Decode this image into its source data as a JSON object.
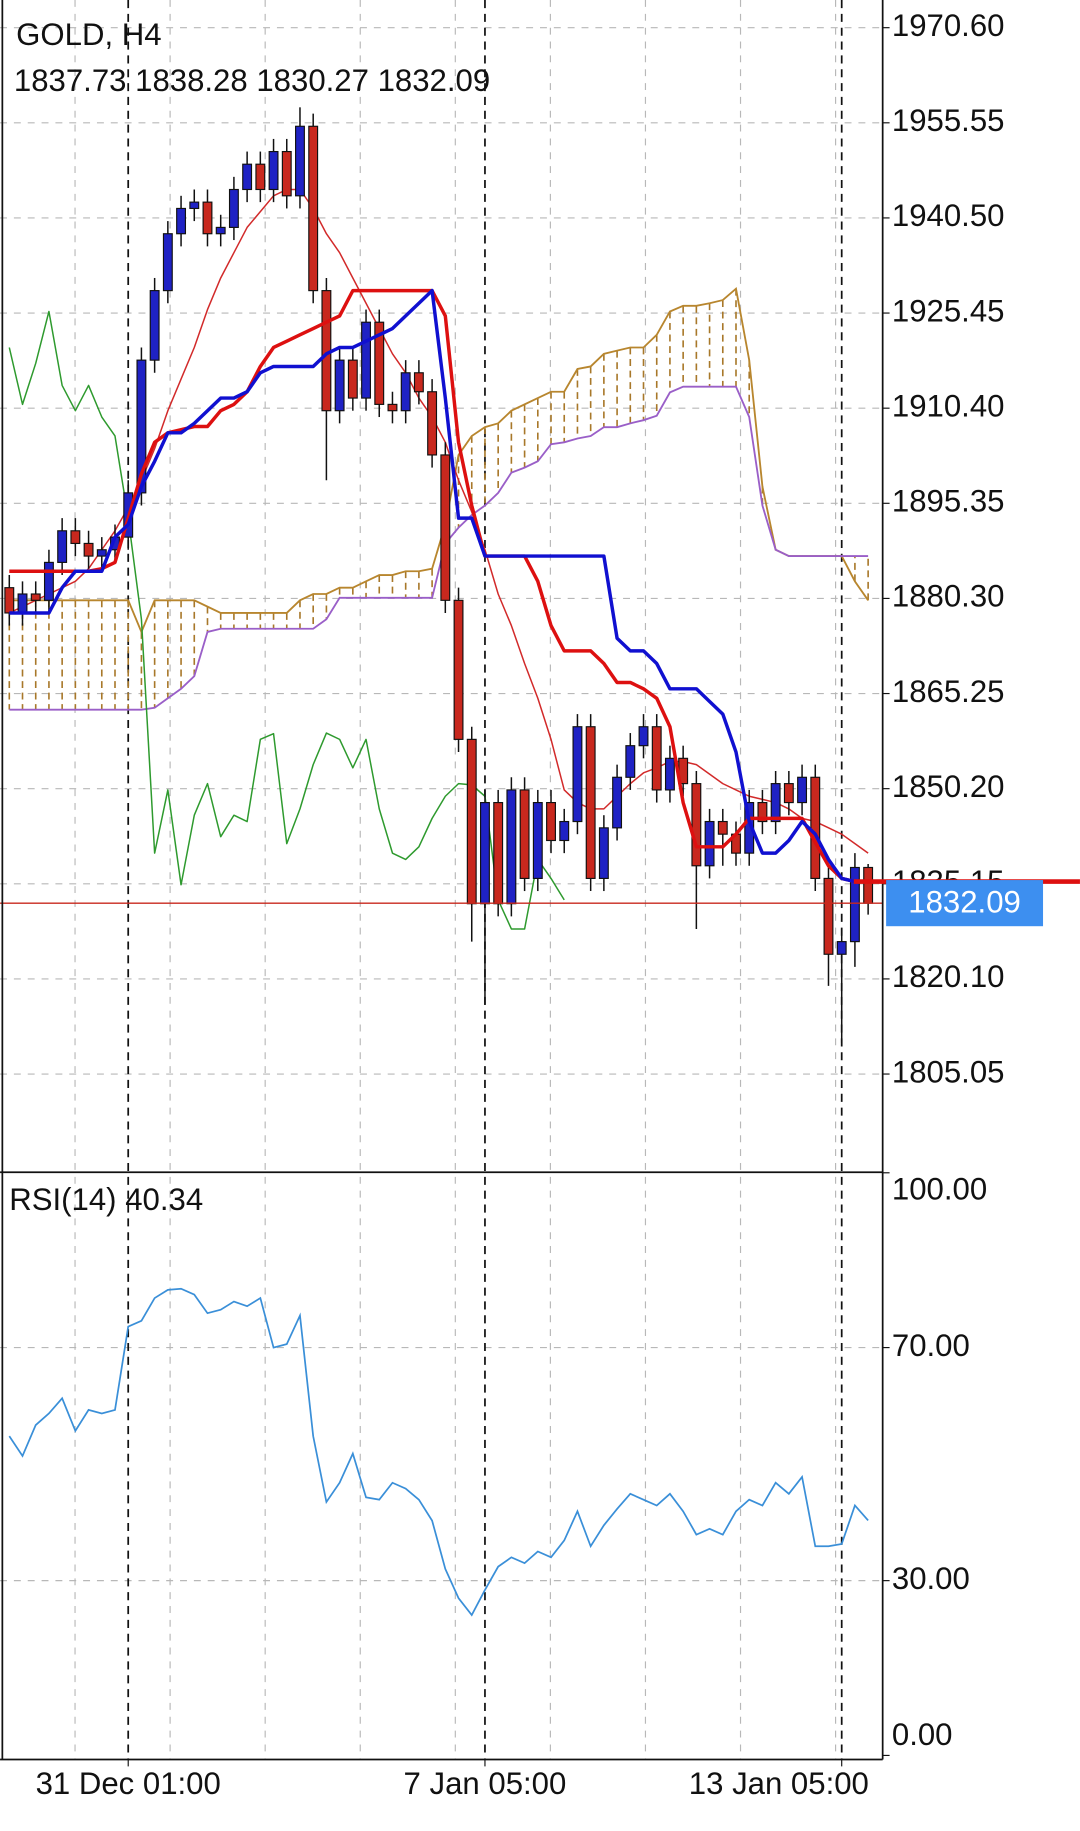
{
  "chart_data": [
    {
      "type": "candlestick",
      "title": "GOLD, H4",
      "open": [
        1882,
        1878,
        1881,
        1880,
        1886,
        1891,
        1889,
        1887,
        1888,
        1890,
        1897,
        1918,
        1929,
        1938,
        1942,
        1943,
        1938,
        1939,
        1945,
        1949,
        1945,
        1951,
        1944,
        1955,
        1929,
        1910,
        1918,
        1912,
        1924,
        1911,
        1910,
        1916,
        1913,
        1903,
        1880,
        1858,
        1832,
        1848,
        1832,
        1850,
        1836,
        1848,
        1842,
        1845,
        1860,
        1836,
        1844,
        1852,
        1857,
        1860,
        1850,
        1855,
        1851,
        1838,
        1845,
        1843,
        1840,
        1848,
        1845,
        1851,
        1848,
        1852,
        1836,
        1824,
        1826,
        1837.73
      ],
      "high": [
        1884,
        1883,
        1883,
        1888,
        1893,
        1893,
        1891,
        1890,
        1892,
        1899,
        1920,
        1931,
        1940,
        1944,
        1945,
        1945,
        1941,
        1947,
        1951,
        1951,
        1953,
        1953,
        1958,
        1957,
        1931,
        1920,
        1920,
        1926,
        1926,
        1913,
        1918,
        1918,
        1915,
        1905,
        1882,
        1860,
        1850,
        1850,
        1852,
        1852,
        1850,
        1850,
        1847,
        1862,
        1862,
        1846,
        1854,
        1859,
        1862,
        1862,
        1857,
        1857,
        1853,
        1847,
        1847,
        1845,
        1850,
        1850,
        1853,
        1853,
        1854,
        1854,
        1838,
        1828,
        1840,
        1838.28
      ],
      "low": [
        1876,
        1876,
        1878,
        1878,
        1884,
        1887,
        1885,
        1885,
        1886,
        1888,
        1895,
        1916,
        1927,
        1936,
        1940,
        1936,
        1936,
        1937,
        1943,
        1943,
        1943,
        1942,
        1942,
        1927,
        1899,
        1908,
        1910,
        1910,
        1909,
        1908,
        1908,
        1911,
        1901,
        1878,
        1856,
        1826,
        1816,
        1830,
        1830,
        1834,
        1834,
        1840,
        1840,
        1843,
        1834,
        1834,
        1842,
        1850,
        1855,
        1848,
        1848,
        1849,
        1828,
        1836,
        1838,
        1838,
        1838,
        1843,
        1843,
        1846,
        1846,
        1834,
        1819,
        1810,
        1822,
        1830.27
      ],
      "close": [
        1878,
        1881,
        1880,
        1886,
        1891,
        1889,
        1887,
        1888,
        1890,
        1897,
        1918,
        1929,
        1938,
        1942,
        1943,
        1938,
        1939,
        1945,
        1949,
        1945,
        1951,
        1944,
        1955,
        1929,
        1910,
        1918,
        1912,
        1924,
        1911,
        1910,
        1916,
        1913,
        1903,
        1880,
        1858,
        1832,
        1848,
        1832,
        1850,
        1836,
        1848,
        1842,
        1845,
        1860,
        1836,
        1844,
        1852,
        1857,
        1860,
        1850,
        1855,
        1851,
        1838,
        1845,
        1843,
        1840,
        1848,
        1845,
        1851,
        1848,
        1852,
        1836,
        1824,
        1826,
        1837.73,
        1832.09
      ],
      "up_color": "#1f22c4",
      "down_color": "#c8281e",
      "cloud": {
        "color": "#a8782a",
        "span_a": {
          "color": "#b8862e",
          "values": [
            1880,
            1880,
            1880,
            1880,
            1880,
            1880,
            1880,
            1880,
            1880,
            1880,
            1875,
            1880,
            1880,
            1880,
            1880,
            1879,
            1878,
            1878,
            1878,
            1878,
            1878,
            1878,
            1880,
            1881,
            1881,
            1882,
            1882,
            1883,
            1884,
            1884,
            1884.6,
            1884.6,
            1885,
            1892,
            1903,
            1906,
            1907.4,
            1908,
            1910,
            1911,
            1912,
            1913,
            1913,
            1916.6,
            1917,
            1919,
            1919.5,
            1920,
            1920,
            1922,
            1925.7,
            1926.6,
            1926.6,
            1927,
            1927.5,
            1929.3,
            1918,
            1898,
            1888,
            1887,
            1887,
            1887,
            1887,
            1887,
            1883,
            1880
          ]
        },
        "span_b": {
          "color": "#9a5fc8",
          "values": [
            1862.7,
            1862.7,
            1862.7,
            1862.7,
            1862.7,
            1862.7,
            1862.7,
            1862.7,
            1862.7,
            1862.7,
            1862.7,
            1863,
            1864.5,
            1866,
            1868,
            1875,
            1875.5,
            1875.5,
            1875.5,
            1875.5,
            1875.5,
            1875.5,
            1875.5,
            1875.5,
            1877,
            1880.4,
            1880.4,
            1880.4,
            1880.4,
            1880.4,
            1880.4,
            1880.4,
            1880.4,
            1889,
            1891.5,
            1893.5,
            1895,
            1897,
            1900.2,
            1901,
            1902,
            1904.7,
            1905,
            1905.6,
            1906,
            1907.4,
            1907.4,
            1908,
            1908.5,
            1909.2,
            1912.9,
            1913.8,
            1913.8,
            1913.8,
            1913.8,
            1913.8,
            1909,
            1895,
            1888,
            1887,
            1887,
            1887,
            1887,
            1887,
            1887,
            1887
          ]
        }
      },
      "series": [
        {
          "color": "#2e9a2e",
          "values": [
            1920,
            1911,
            1917.5,
            1925.7,
            1914,
            1910,
            1914,
            1909,
            1906,
            1893,
            1877,
            1840,
            1850,
            1835,
            1846,
            1851,
            1842.6,
            1846,
            1845,
            1858,
            1858.9,
            1841.5,
            1847,
            1854,
            1859,
            1858,
            1853.5,
            1858,
            1847,
            1840,
            1839,
            1841,
            1845.5,
            1849,
            1851,
            1850.8,
            1849,
            1832.6,
            1828,
            1828,
            1839,
            1836,
            1832.6,
            null,
            null,
            null,
            null,
            null,
            null,
            null,
            null,
            null,
            null,
            null,
            null,
            null,
            null,
            null,
            null,
            null,
            null,
            null,
            null,
            null,
            null,
            null
          ]
        },
        {
          "color": "#d22a2a",
          "values": [
            1878,
            1879,
            1880,
            1881,
            1882,
            1883,
            1885,
            1888,
            1891,
            1894.7,
            1899,
            1904,
            1910,
            1915,
            1920,
            1926,
            1931,
            1935,
            1939,
            1941.5,
            1944,
            1945,
            1945,
            1942,
            1938,
            1935,
            1931,
            1927,
            1923,
            1919,
            1916,
            1912,
            1909,
            1905,
            1899,
            1894,
            1888,
            1881,
            1876,
            1870,
            1864.5,
            1858,
            1850,
            1848,
            1847,
            1847,
            1849,
            1851,
            1852.7,
            1853.5,
            1854.5,
            1854.5,
            1854,
            1852.5,
            1851,
            1850,
            1849,
            1848.5,
            1848,
            1847,
            1845.5,
            1845,
            1844,
            1843,
            1841.5,
            1840
          ]
        },
        {
          "color": "#dd1010",
          "values": [
            1884.6,
            1884.6,
            1884.6,
            1884.6,
            1884.6,
            1884.6,
            1884.6,
            1885,
            1886,
            1893,
            1900,
            1905,
            1906.5,
            1907,
            1907.5,
            1907.5,
            1910,
            1911,
            1913,
            1917,
            1920,
            1921,
            1922,
            1923,
            1924,
            1925,
            1929,
            1929,
            1929,
            1929,
            1929,
            1929,
            1929,
            1925,
            1905,
            1895,
            1887,
            1887,
            1887,
            1887,
            1883,
            1876,
            1872,
            1872,
            1872,
            1870,
            1867,
            1867,
            1866,
            1864.5,
            1860,
            1848,
            1841,
            1841,
            1841,
            1843,
            1845.5,
            1845.5,
            1845.5,
            1845.5,
            1845.5,
            1841.7,
            1838,
            1836,
            1835.5,
            1835.5
          ]
        },
        {
          "color": "#1010d0",
          "values": [
            1878,
            1878,
            1878,
            1878,
            1882,
            1884.6,
            1884.6,
            1884.6,
            1890,
            1892,
            1898,
            1902,
            1906.5,
            1906.5,
            1908,
            1910,
            1912,
            1912,
            1913,
            1916,
            1917,
            1917,
            1917,
            1917,
            1919,
            1920,
            1920,
            1921,
            1922,
            1923,
            1925,
            1927,
            1929,
            1912,
            1893,
            1893,
            1887,
            1887,
            1887,
            1887,
            1887,
            1887,
            1887,
            1887,
            1887,
            1887,
            1874,
            1872,
            1872,
            1870,
            1866,
            1866,
            1866,
            1864,
            1862,
            1856,
            1845,
            1840,
            1840,
            1842,
            1845,
            1843,
            1839,
            1836,
            1835.5,
            1835.5
          ]
        }
      ],
      "xlim": [
        -0.7,
        66.1
      ],
      "xticks": [
        {
          "value": 9,
          "label": "31 Dec 01:00"
        },
        {
          "value": 36,
          "label": "7 Jan 05:00"
        },
        {
          "value": 63,
          "label": "13 Jan 05:00"
        }
      ],
      "ylim": [
        1789.7,
        1974.98
      ],
      "yticks": [
        {
          "value": 1970.6,
          "label": "1970.60"
        },
        {
          "value": 1955.55,
          "label": "1955.55"
        },
        {
          "value": 1940.5,
          "label": "1940.50"
        },
        {
          "value": 1925.45,
          "label": "1925.45"
        },
        {
          "value": 1910.4,
          "label": "1910.40"
        },
        {
          "value": 1895.35,
          "label": "1895.35"
        },
        {
          "value": 1880.3,
          "label": "1880.30"
        },
        {
          "value": 1865.25,
          "label": "1865.25"
        },
        {
          "value": 1850.2,
          "label": "1850.20"
        },
        {
          "value": 1835.15,
          "label": "1835.15"
        },
        {
          "value": 1820.1,
          "label": "1820.10"
        },
        {
          "value": 1805.05,
          "label": "1805.05"
        }
      ],
      "grid": true,
      "price_line_color": "#c8281e",
      "price_tag_color": "#3d8ff0"
    },
    {
      "type": "line",
      "title": "RSI(14)",
      "series": [
        {
          "color": "#3a8fd8",
          "values": [
            54.8,
            51.4,
            56.7,
            58.7,
            61.3,
            55.7,
            59.3,
            58.7,
            59.3,
            73.6,
            74.6,
            78.5,
            79.9,
            80.1,
            79.1,
            75.9,
            76.5,
            77.9,
            77.1,
            78.5,
            70.0,
            70.6,
            75.5,
            54.8,
            43.5,
            46.8,
            51.8,
            44.3,
            43.9,
            46.8,
            45.8,
            43.9,
            40.3,
            32.0,
            27.0,
            24.1,
            28.4,
            32.4,
            34.0,
            33.0,
            35.0,
            34.0,
            36.9,
            41.9,
            35.9,
            39.5,
            42.3,
            44.9,
            43.9,
            42.9,
            44.9,
            41.9,
            37.9,
            38.9,
            37.9,
            41.9,
            43.9,
            42.9,
            46.8,
            44.9,
            47.8,
            35.9,
            35.9,
            36.3,
            42.9,
            40.34
          ]
        }
      ],
      "ylim": [
        0,
        100
      ],
      "yticks": [
        {
          "value": 100,
          "label": "100.00"
        },
        {
          "value": 70,
          "label": "70.00"
        },
        {
          "value": 30,
          "label": "30.00"
        },
        {
          "value": 0,
          "label": "0.00"
        }
      ],
      "grid": true
    }
  ]
}
